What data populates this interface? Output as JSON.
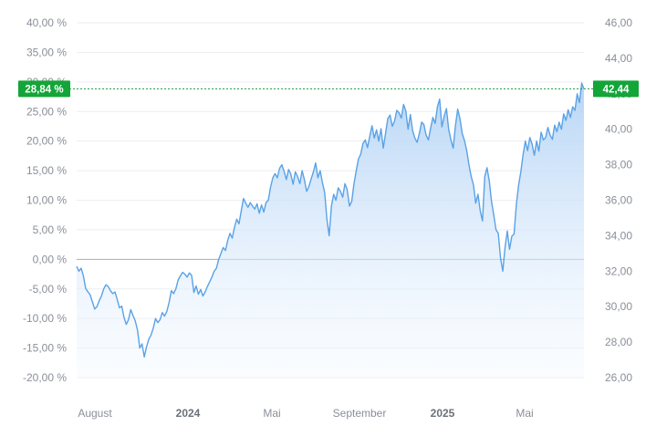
{
  "chart_data": {
    "type": "area",
    "title": "",
    "xlabel": "",
    "ylabel": "",
    "x_ticks": [
      {
        "label": "August",
        "bold": false
      },
      {
        "label": "2024",
        "bold": true
      },
      {
        "label": "Mai",
        "bold": false
      },
      {
        "label": "September",
        "bold": false
      },
      {
        "label": "2025",
        "bold": true
      },
      {
        "label": "Mai",
        "bold": false
      }
    ],
    "left_axis": {
      "unit": "percent change",
      "ylim": [
        -20,
        40
      ],
      "ticks": [
        "40,00 %",
        "35,00 %",
        "30,00 %",
        "25,00 %",
        "20,00 %",
        "15,00 %",
        "10,00 %",
        "5,00 %",
        "0,00 %",
        "-5,00 %",
        "-10,00 %",
        "-15,00 %",
        "-20,00 %"
      ],
      "tick_values": [
        40,
        35,
        30,
        25,
        20,
        15,
        10,
        5,
        0,
        -5,
        -10,
        -15,
        -20
      ]
    },
    "right_axis": {
      "unit": "price",
      "ylim": [
        26,
        46
      ],
      "ticks": [
        "46,00",
        "44,00",
        "42,00",
        "40,00",
        "38,00",
        "36,00",
        "34,00",
        "32,00",
        "30,00",
        "28,00",
        "26,00"
      ],
      "tick_values": [
        46,
        44,
        42,
        40,
        38,
        36,
        34,
        32,
        30,
        28,
        26
      ]
    },
    "baseline": 0,
    "current": {
      "percent_label": "28,84 %",
      "price_label": "42,44",
      "percent": 28.84,
      "price": 42.44
    },
    "series": [
      {
        "values": [
          -1.2,
          -2.0,
          -1.5,
          -2.8,
          -4.9,
          -5.5,
          -6.0,
          -7.2,
          -8.4,
          -8.0,
          -7.0,
          -6.2,
          -5.0,
          -4.3,
          -4.6,
          -5.3,
          -5.8,
          -5.5,
          -6.8,
          -8.2,
          -7.9,
          -9.8,
          -11.0,
          -10.2,
          -8.5,
          -9.5,
          -10.4,
          -12.0,
          -15.0,
          -14.3,
          -16.5,
          -14.8,
          -13.5,
          -12.8,
          -11.6,
          -10.0,
          -10.7,
          -10.2,
          -9.0,
          -9.6,
          -8.8,
          -7.3,
          -5.3,
          -5.8,
          -5.0,
          -3.5,
          -2.8,
          -2.2,
          -2.5,
          -3.0,
          -2.3,
          -2.7,
          -5.6,
          -4.5,
          -5.9,
          -5.1,
          -6.2,
          -5.5,
          -4.6,
          -3.8,
          -3.0,
          -2.0,
          -1.5,
          0.0,
          1.0,
          2.0,
          1.5,
          3.2,
          4.4,
          3.6,
          5.4,
          6.8,
          6.0,
          8.2,
          10.3,
          9.5,
          8.8,
          9.6,
          9.0,
          8.5,
          9.4,
          7.8,
          9.2,
          8.0,
          9.6,
          10.0,
          12.2,
          13.8,
          14.5,
          13.8,
          15.4,
          16.0,
          14.9,
          13.5,
          15.2,
          14.4,
          12.7,
          14.8,
          14.0,
          12.8,
          15.0,
          13.5,
          11.5,
          12.3,
          13.6,
          14.8,
          16.3,
          13.8,
          15.0,
          13.0,
          11.3,
          6.8,
          4.0,
          9.0,
          11.0,
          10.0,
          12.1,
          11.5,
          10.5,
          12.8,
          11.8,
          9.0,
          9.8,
          12.8,
          15.0,
          17.0,
          17.8,
          19.6,
          20.2,
          18.9,
          20.8,
          22.6,
          20.5,
          21.9,
          20.0,
          22.1,
          18.8,
          21.3,
          23.8,
          24.4,
          22.5,
          23.4,
          25.2,
          24.8,
          23.9,
          26.2,
          25.1,
          22.0,
          24.5,
          21.8,
          20.5,
          19.8,
          21.3,
          23.2,
          22.8,
          21.0,
          20.2,
          22.2,
          24.0,
          23.0,
          25.8,
          27.1,
          22.4,
          24.2,
          25.5,
          22.0,
          20.2,
          18.8,
          22.6,
          25.4,
          23.8,
          21.3,
          20.1,
          18.4,
          16.0,
          14.0,
          12.6,
          9.5,
          11.0,
          8.2,
          6.5,
          14.0,
          15.5,
          13.3,
          9.8,
          7.5,
          5.0,
          4.4,
          0.2,
          -2.0,
          2.0,
          4.8,
          1.7,
          3.9,
          4.3,
          9.2,
          12.5,
          14.8,
          17.7,
          20.0,
          18.4,
          20.6,
          19.5,
          17.6,
          20.0,
          18.3,
          21.5,
          20.2,
          20.6,
          22.3,
          21.0,
          20.3,
          22.7,
          21.6,
          23.2,
          22.0,
          24.6,
          23.5,
          25.3,
          24.0,
          25.8,
          25.2,
          28.0,
          26.5,
          29.8,
          28.84
        ]
      }
    ],
    "grid": true,
    "legend": "none"
  }
}
